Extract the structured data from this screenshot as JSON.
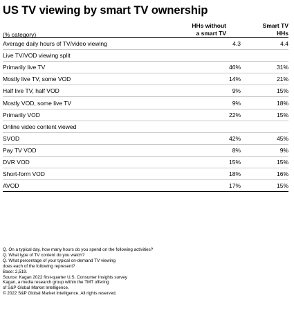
{
  "chart_data": {
    "type": "table",
    "title": "US TV viewing by smart TV ownership",
    "category_header": "(% category)",
    "columns": [
      {
        "line1": "HHs without",
        "line2": "a smart TV"
      },
      {
        "line1": "Smart TV",
        "line2": "HHs"
      }
    ],
    "rows": [
      {
        "label": "Average daily hours of TV/video viewing",
        "v1": "4.3",
        "v2": "4.4",
        "section": false
      },
      {
        "label": "Live TV/VOD viewing split",
        "v1": "",
        "v2": "",
        "section": true
      },
      {
        "label": "Primarily live TV",
        "v1": "46%",
        "v2": "31%",
        "section": false
      },
      {
        "label": "Mostly live TV, some VOD",
        "v1": "14%",
        "v2": "21%",
        "section": false
      },
      {
        "label": "Half live TV, half VOD",
        "v1": "9%",
        "v2": "15%",
        "section": false
      },
      {
        "label": "Mostly VOD, some live TV",
        "v1": "9%",
        "v2": "18%",
        "section": false
      },
      {
        "label": "Primarily VOD",
        "v1": "22%",
        "v2": "15%",
        "section": false
      },
      {
        "label": "Online video content viewed",
        "v1": "",
        "v2": "",
        "section": true
      },
      {
        "label": "SVOD",
        "v1": "42%",
        "v2": "45%",
        "section": false
      },
      {
        "label": "Pay TV VOD",
        "v1": "8%",
        "v2": "9%",
        "section": false
      },
      {
        "label": "DVR VOD",
        "v1": "15%",
        "v2": "15%",
        "section": false
      },
      {
        "label": "Short-form VOD",
        "v1": "18%",
        "v2": "16%",
        "section": false
      },
      {
        "label": "AVOD",
        "v1": "17%",
        "v2": "15%",
        "section": false
      }
    ],
    "notes": [
      "Q. On a typical day, how many hours do you spend on the following activities?",
      "Q. What type of TV content do you watch?",
      "Q. What percentage of your typical on-demand TV viewing",
      "does each of the following represent?",
      "Base: 2,519.",
      "Source: Kagan 2022 first-quarter U.S. Consumer Insights survey",
      "Kagan, a media research group within the TMT offering",
      "of S&P Global Market Intelligence.",
      "© 2022 S&P Global Market Intelligence. All rights reserved."
    ]
  }
}
